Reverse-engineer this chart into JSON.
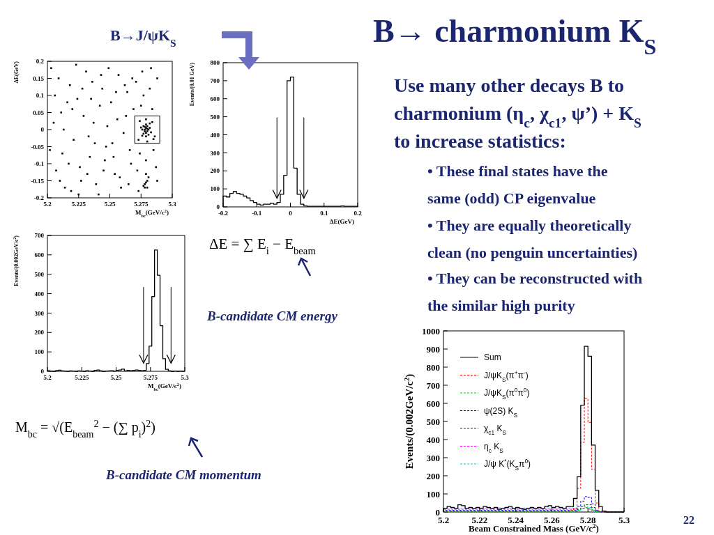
{
  "chart_data": [
    {
      "type": "scatter",
      "xlabel": "M$_{bc}$(GeV/c$^{2}$)",
      "ylabel": "ΔE(GeV)",
      "xlim": [
        5.2,
        5.3
      ],
      "ylim": [
        -0.2,
        0.2
      ],
      "xticks": [
        5.2,
        5.225,
        5.25,
        5.275,
        5.3
      ],
      "yticks": [
        -0.2,
        -0.15,
        -0.1,
        -0.05,
        0,
        0.05,
        0.1,
        0.15,
        0.2
      ],
      "marker": "square",
      "color": "#000000",
      "x": [
        5.203,
        5.207,
        5.211,
        5.214,
        5.218,
        5.221,
        5.224,
        5.227,
        5.231,
        5.234,
        5.237,
        5.241,
        5.244,
        5.247,
        5.251,
        5.254,
        5.257,
        5.261,
        5.264,
        5.267,
        5.271,
        5.274,
        5.277,
        5.281,
        5.284,
        5.287,
        5.205,
        5.209,
        5.212,
        5.216,
        5.219,
        5.223,
        5.226,
        5.229,
        5.233,
        5.236,
        5.239,
        5.242,
        5.246,
        5.249,
        5.252,
        5.256,
        5.259,
        5.262,
        5.266,
        5.269,
        5.273,
        5.276,
        5.279,
        5.282,
        5.286,
        5.288,
        5.202,
        5.206,
        5.21,
        5.213,
        5.217,
        5.22,
        5.225,
        5.228,
        5.232,
        5.235,
        5.238,
        5.243,
        5.245,
        5.248,
        5.253,
        5.255,
        5.258,
        5.263,
        5.265,
        5.268,
        5.272,
        5.275,
        5.28,
        5.283,
        5.285,
        5.288,
        5.278,
        5.279,
        5.28,
        5.277,
        5.281,
        5.279,
        5.278,
        5.28,
        5.276,
        5.282,
        5.279,
        5.277,
        5.281,
        5.28,
        5.278,
        5.283,
        5.275,
        5.279,
        5.282,
        5.276,
        5.274,
        5.284,
        5.273,
        5.285,
        5.279,
        5.28,
        5.278,
        5.279,
        5.277,
        5.28,
        5.279,
        5.278
      ],
      "values": [
        0.18,
        -0.12,
        0.05,
        -0.17,
        0.13,
        -0.03,
        0.09,
        -0.15,
        0.17,
        -0.08,
        0.02,
        -0.19,
        0.12,
        -0.05,
        0.08,
        -0.13,
        0.16,
        -0.01,
        0.11,
        -0.1,
        0.14,
        -0.07,
        0.1,
        -0.14,
        0.06,
        -0.11,
        0.02,
        0.15,
        -0.07,
        0.08,
        -0.18,
        0.19,
        -0.11,
        0.04,
        -0.02,
        0.14,
        -0.16,
        0.07,
        -0.09,
        0.18,
        -0.04,
        0.03,
        -0.17,
        0.13,
        -0.06,
        0.06,
        -0.18,
        0.17,
        -0.09,
        0.12,
        -0.02,
        0.15,
        -0.06,
        0.1,
        -0.15,
        0,
        -0.1,
        0.06,
        -0.19,
        0.12,
        -0.13,
        0.09,
        -0.04,
        0.16,
        -0.12,
        0.01,
        -0.08,
        0.11,
        -0.14,
        0.04,
        -0.16,
        0.15,
        -0.12,
        0.07,
        -0.17,
        0.18,
        -0.06,
        -0.15,
        0,
        0.005,
        -0.005,
        0.01,
        0,
        -0.01,
        -0.005,
        0.01,
        0,
        0.005,
        0.015,
        -0.012,
        -0.015,
        0.002,
        0.008,
        -0.008,
        0.006,
        -0.02,
        0.018,
        -0.018,
        0.025,
        0.022,
        -0.03,
        -0.028,
        0.03,
        -0.035,
        -0.16,
        -0.155,
        -0.165,
        -0.15,
        -0.13,
        -0.17
      ]
    },
    {
      "type": "histogram",
      "xlabel": "ΔE(GeV)",
      "ylabel": "Events/(0.01 GeV)",
      "xlim": [
        -0.2,
        0.2
      ],
      "ylim": [
        0,
        800
      ],
      "xticks": [
        -0.2,
        -0.1,
        0,
        0.1,
        0.2
      ],
      "yticks": [
        0,
        100,
        200,
        300,
        400,
        500,
        600,
        700,
        800
      ],
      "color": "#000000",
      "bins": [
        -0.2,
        -0.19,
        -0.18,
        -0.17,
        -0.16,
        -0.15,
        -0.14,
        -0.13,
        -0.12,
        -0.11,
        -0.1,
        -0.09,
        -0.08,
        -0.07,
        -0.06,
        -0.05,
        -0.04,
        -0.03,
        -0.02,
        -0.01,
        0,
        0.01,
        0.02,
        0.03,
        0.04,
        0.05,
        0.06,
        0.07,
        0.08,
        0.09,
        0.1,
        0.11,
        0.12,
        0.13,
        0.14,
        0.15,
        0.16,
        0.17,
        0.18,
        0.19,
        0.2
      ],
      "values": [
        60,
        55,
        75,
        85,
        75,
        70,
        60,
        50,
        35,
        25,
        15,
        10,
        15,
        15,
        20,
        15,
        25,
        70,
        175,
        700,
        720,
        215,
        70,
        15,
        5,
        3,
        3,
        3,
        3,
        3,
        3,
        3,
        3,
        3,
        3,
        5,
        3,
        3,
        3,
        3
      ],
      "ref_lines": [
        {
          "axis": "x",
          "value": -0.04
        },
        {
          "axis": "x",
          "value": 0.04
        }
      ]
    },
    {
      "type": "histogram",
      "xlabel": "M$_{bc}$(GeV/c$^{2}$)",
      "ylabel": "Events/(0.002GeV/c$^{2}$)",
      "xlim": [
        5.2,
        5.3
      ],
      "ylim": [
        0,
        700
      ],
      "xticks": [
        5.2,
        5.225,
        5.25,
        5.275,
        5.3
      ],
      "yticks": [
        0,
        100,
        200,
        300,
        400,
        500,
        600,
        700
      ],
      "color": "#000000",
      "bins": [
        5.2,
        5.202,
        5.204,
        5.206,
        5.208,
        5.21,
        5.212,
        5.214,
        5.216,
        5.218,
        5.22,
        5.222,
        5.224,
        5.226,
        5.228,
        5.23,
        5.232,
        5.234,
        5.236,
        5.238,
        5.24,
        5.242,
        5.244,
        5.246,
        5.248,
        5.25,
        5.252,
        5.254,
        5.256,
        5.258,
        5.26,
        5.262,
        5.264,
        5.266,
        5.268,
        5.27,
        5.272,
        5.274,
        5.276,
        5.278,
        5.28,
        5.282,
        5.284,
        5.286,
        5.288,
        5.29,
        5.292,
        5.294,
        5.296,
        5.298,
        5.3
      ],
      "values": [
        3,
        1,
        0,
        4,
        6,
        2,
        1,
        0,
        2,
        1,
        0,
        2,
        1,
        0,
        3,
        1,
        0,
        5,
        7,
        2,
        0,
        1,
        2,
        3,
        1,
        5,
        7,
        11,
        2,
        5,
        3,
        5,
        7,
        5,
        3,
        5,
        40,
        130,
        385,
        625,
        495,
        235,
        65,
        10,
        2,
        0,
        1,
        0,
        1,
        0
      ],
      "ref_lines": [
        {
          "axis": "x",
          "value": 5.27
        },
        {
          "axis": "x",
          "value": 5.29
        }
      ]
    },
    {
      "type": "histogram",
      "xlabel": "Beam Constrained Mass (GeV/c$^{2}$)",
      "ylabel": "Events/(0.002GeV/c$^{2}$)",
      "xlim": [
        5.2,
        5.3
      ],
      "ylim": [
        0,
        1000
      ],
      "xticks": [
        5.2,
        5.22,
        5.24,
        5.26,
        5.28,
        5.3
      ],
      "yticks": [
        0,
        100,
        200,
        300,
        400,
        500,
        600,
        700,
        800,
        900,
        1000
      ],
      "legend": "top left",
      "bins": [
        5.2,
        5.202,
        5.204,
        5.206,
        5.208,
        5.21,
        5.212,
        5.214,
        5.216,
        5.218,
        5.22,
        5.222,
        5.224,
        5.226,
        5.228,
        5.23,
        5.232,
        5.234,
        5.236,
        5.238,
        5.24,
        5.242,
        5.244,
        5.246,
        5.248,
        5.25,
        5.252,
        5.254,
        5.256,
        5.258,
        5.26,
        5.262,
        5.264,
        5.266,
        5.268,
        5.27,
        5.272,
        5.274,
        5.276,
        5.278,
        5.28,
        5.282,
        5.284,
        5.286,
        5.288,
        5.29,
        5.292,
        5.294,
        5.296,
        5.298,
        5.3
      ],
      "series": [
        {
          "name": "Sum",
          "color": "#000000",
          "line_style": "solid",
          "values": [
            20,
            30,
            25,
            20,
            40,
            35,
            20,
            25,
            20,
            25,
            20,
            30,
            25,
            20,
            25,
            15,
            20,
            25,
            30,
            20,
            25,
            20,
            15,
            20,
            25,
            20,
            25,
            20,
            30,
            35,
            25,
            30,
            25,
            20,
            30,
            30,
            75,
            195,
            590,
            915,
            860,
            370,
            120,
            30,
            5,
            0,
            0,
            0,
            0,
            0
          ]
        },
        {
          "name": "J/ψK$_{S}$(π$^{+}$π$^{-}$)",
          "color": "#ff0000",
          "line_style": "dashed",
          "values": [
            5,
            5,
            5,
            5,
            5,
            5,
            5,
            5,
            5,
            5,
            5,
            5,
            5,
            5,
            5,
            5,
            5,
            5,
            5,
            5,
            5,
            5,
            5,
            5,
            5,
            5,
            5,
            5,
            5,
            5,
            5,
            5,
            5,
            5,
            5,
            10,
            20,
            130,
            385,
            625,
            495,
            235,
            50,
            5,
            0,
            0,
            0,
            0,
            0,
            0
          ]
        },
        {
          "name": "J/ψK$_{S}$(π$^{0}$π$^{0}$)",
          "color": "#00cc00",
          "line_style": "dashed",
          "values": [
            1,
            1,
            1,
            1,
            1,
            1,
            1,
            1,
            1,
            1,
            1,
            1,
            1,
            1,
            1,
            1,
            1,
            1,
            1,
            1,
            1,
            1,
            1,
            1,
            1,
            1,
            1,
            1,
            1,
            1,
            1,
            1,
            1,
            1,
            1,
            1,
            5,
            10,
            20,
            25,
            20,
            10,
            3,
            0,
            0,
            0,
            0,
            0,
            0,
            0
          ]
        },
        {
          "name": "ψ(2S) K$_{S}$",
          "color": "#0000ff",
          "line_style": "dashed",
          "values": [
            9,
            9,
            9,
            9,
            9,
            9,
            9,
            9,
            9,
            9,
            9,
            9,
            9,
            9,
            9,
            9,
            9,
            9,
            9,
            9,
            9,
            9,
            9,
            9,
            9,
            9,
            9,
            9,
            9,
            9,
            9,
            9,
            9,
            9,
            9,
            9,
            10,
            30,
            60,
            85,
            80,
            45,
            10,
            2,
            0,
            0,
            0,
            0,
            0,
            0
          ]
        },
        {
          "name": "χ$_{c1}$ K$_{S}$",
          "color": "#333333",
          "line_style": "dashed",
          "values": [
            3,
            3,
            3,
            3,
            3,
            3,
            3,
            3,
            3,
            3,
            3,
            3,
            3,
            3,
            3,
            3,
            3,
            3,
            3,
            3,
            3,
            3,
            3,
            3,
            3,
            3,
            3,
            3,
            3,
            3,
            3,
            3,
            3,
            3,
            3,
            3,
            3,
            15,
            30,
            40,
            40,
            25,
            5,
            0,
            0,
            0,
            0,
            0,
            0,
            0
          ]
        },
        {
          "name": "η$_{c}$ K$_{S}$",
          "color": "#ff00ff",
          "line_style": "dashed",
          "values": [
            15,
            15,
            15,
            15,
            15,
            15,
            15,
            15,
            15,
            15,
            15,
            15,
            15,
            15,
            15,
            15,
            15,
            15,
            15,
            15,
            15,
            15,
            15,
            15,
            15,
            15,
            15,
            15,
            15,
            15,
            15,
            15,
            15,
            15,
            15,
            15,
            15,
            15,
            20,
            20,
            15,
            10,
            5,
            0,
            0,
            0,
            0,
            0,
            0,
            0
          ]
        },
        {
          "name": "J/ψ K$^{*}$(K$_{S}$π$^{0}$)",
          "color": "#00cccc",
          "line_style": "dashed",
          "values": [
            22,
            22,
            22,
            22,
            22,
            22,
            22,
            22,
            22,
            22,
            22,
            22,
            22,
            22,
            22,
            22,
            22,
            22,
            22,
            22,
            22,
            22,
            22,
            22,
            22,
            22,
            22,
            22,
            22,
            22,
            22,
            22,
            22,
            22,
            22,
            22,
            22,
            10,
            20,
            30,
            25,
            15,
            5,
            0,
            0,
            0,
            0,
            0,
            0,
            0
          ]
        }
      ]
    },
    {
      "type": "other",
      "title": "B→ charmonium K$_{S}$",
      "annotations": [
        "B→J/ψK$_{S}$",
        "Use many other decays B to",
        "charmonium (η$_{c}$, χ$_{c1}$, ψ’) + K$_{S}$",
        "to increase statistics:",
        "• These final states have the",
        "same (odd) CP eigenvalue",
        "• They are equally theoretically",
        "clean (no penguin uncertainties)",
        "• They can be reconstructed with",
        "the similar high purity",
        "ΔE = ∑ E$_{i}$ − E$_{beam}$",
        "B-candidate CM energy",
        "M$_{bc}$ = √(E$_{beam}$$^{2}$ − (∑ p$_{i}$)$^{2}$)",
        "B-candidate CM momentum",
        "22"
      ]
    }
  ]
}
